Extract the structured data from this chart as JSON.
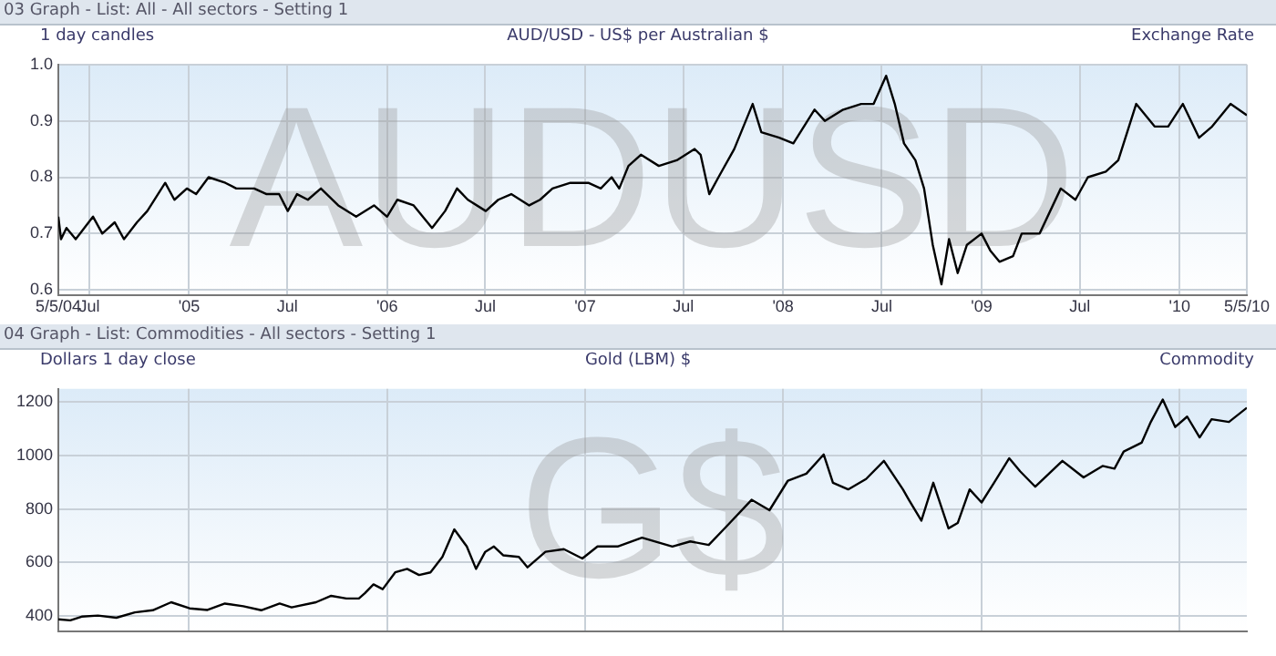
{
  "chart_data": [
    {
      "type": "line",
      "title": "AUD/USD - US$ per Australian $",
      "subtitle": "1 day candles",
      "annotations": [
        "03 Graph - List: All - All sectors - Setting 1",
        "Exchange Rate",
        "AUDUSD"
      ],
      "series": [
        {
          "color": "#000000",
          "x": [
            "2004-05-05",
            "2004-05-10",
            "2004-05-20",
            "2004-06-06",
            "2004-07-08",
            "2004-07-25",
            "2004-08-17",
            "2004-09-03",
            "2004-09-27",
            "2004-10-16",
            "2004-11-18",
            "2004-12-05",
            "2004-12-28",
            "2005-01-14",
            "2005-02-06",
            "2005-03-09",
            "2005-03-29",
            "2005-05-01",
            "2005-05-24",
            "2005-06-16",
            "2005-07-02",
            "2005-07-19",
            "2005-08-08",
            "2005-09-01",
            "2005-10-03",
            "2005-11-05",
            "2005-12-08",
            "2006-01-01",
            "2006-01-20",
            "2006-02-19",
            "2006-03-25",
            "2006-04-18",
            "2006-05-10",
            "2006-05-30",
            "2006-07-02",
            "2006-07-25",
            "2006-08-18",
            "2006-09-20",
            "2006-10-10",
            "2006-11-02",
            "2006-12-05",
            "2007-01-07",
            "2007-01-30",
            "2007-02-19",
            "2007-03-05",
            "2007-03-22",
            "2007-04-14",
            "2007-05-17",
            "2007-06-19",
            "2007-07-22",
            "2007-08-02",
            "2007-08-18",
            "2007-09-04",
            "2007-10-03",
            "2007-11-06",
            "2007-11-22",
            "2007-12-25",
            "2008-01-20",
            "2008-02-28",
            "2008-03-18",
            "2008-04-21",
            "2008-05-24",
            "2008-06-16",
            "2008-07-09",
            "2008-07-25",
            "2008-08-11",
            "2008-09-01",
            "2008-09-17",
            "2008-10-03",
            "2008-10-19",
            "2008-11-02",
            "2008-11-18",
            "2008-12-05",
            "2009-01-01",
            "2009-01-17",
            "2009-02-03",
            "2009-02-28",
            "2009-03-16",
            "2009-04-18",
            "2009-05-27",
            "2009-06-23",
            "2009-07-16",
            "2009-08-18",
            "2009-09-10",
            "2009-10-13",
            "2009-11-16",
            "2009-12-11",
            "2010-01-07",
            "2010-02-06",
            "2010-03-02",
            "2010-04-05",
            "2010-05-05"
          ],
          "values": [
            0.73,
            0.69,
            0.71,
            0.69,
            0.73,
            0.7,
            0.72,
            0.69,
            0.72,
            0.74,
            0.79,
            0.76,
            0.78,
            0.77,
            0.8,
            0.79,
            0.78,
            0.78,
            0.77,
            0.77,
            0.74,
            0.77,
            0.76,
            0.78,
            0.75,
            0.73,
            0.75,
            0.73,
            0.76,
            0.75,
            0.71,
            0.74,
            0.78,
            0.76,
            0.74,
            0.76,
            0.77,
            0.75,
            0.76,
            0.78,
            0.79,
            0.79,
            0.78,
            0.8,
            0.78,
            0.82,
            0.84,
            0.82,
            0.83,
            0.85,
            0.84,
            0.77,
            0.8,
            0.85,
            0.93,
            0.88,
            0.87,
            0.86,
            0.92,
            0.9,
            0.92,
            0.93,
            0.93,
            0.98,
            0.93,
            0.86,
            0.83,
            0.78,
            0.68,
            0.61,
            0.69,
            0.63,
            0.68,
            0.7,
            0.67,
            0.65,
            0.66,
            0.7,
            0.7,
            0.78,
            0.76,
            0.8,
            0.81,
            0.83,
            0.93,
            0.89,
            0.89,
            0.93,
            0.87,
            0.89,
            0.93,
            0.91
          ]
        }
      ],
      "xlim": [
        "2004-05-05",
        "2010-05-05"
      ],
      "xticks": [
        {
          "value": "2004-05-05",
          "label": "5/5/04"
        },
        {
          "value": "2004-07-01",
          "label": "Jul"
        },
        {
          "value": "2005-01-01",
          "label": "'05"
        },
        {
          "value": "2005-07-01",
          "label": "Jul"
        },
        {
          "value": "2006-01-01",
          "label": "'06"
        },
        {
          "value": "2006-07-01",
          "label": "Jul"
        },
        {
          "value": "2007-01-01",
          "label": "'07"
        },
        {
          "value": "2007-07-01",
          "label": "Jul"
        },
        {
          "value": "2008-01-01",
          "label": "'08"
        },
        {
          "value": "2008-07-01",
          "label": "Jul"
        },
        {
          "value": "2009-01-01",
          "label": "'09"
        },
        {
          "value": "2009-07-01",
          "label": "Jul"
        },
        {
          "value": "2010-01-01",
          "label": "'10"
        },
        {
          "value": "2010-05-05",
          "label": "5/5/10"
        }
      ],
      "ylim": [
        0.59,
        1.0
      ],
      "yticks": [
        0.6,
        0.7,
        0.8,
        0.9,
        {
          "value": 1.0,
          "label": "1.0"
        }
      ],
      "grid": true,
      "legend": false
    },
    {
      "type": "line",
      "title": "Gold (LBM) $",
      "subtitle": "Dollars 1 day close",
      "annotations": [
        "04 Graph - List: Commodities - All sectors - Setting 1",
        "Commodity",
        "G$"
      ],
      "series": [
        {
          "color": "#000000",
          "x": [
            "2004-05-05",
            "2004-05-27",
            "2004-06-17",
            "2004-07-17",
            "2004-08-20",
            "2004-09-23",
            "2004-10-26",
            "2004-11-29",
            "2005-01-02",
            "2005-02-04",
            "2005-03-08",
            "2005-04-11",
            "2005-05-14",
            "2005-06-17",
            "2005-07-09",
            "2005-08-23",
            "2005-09-20",
            "2005-10-18",
            "2005-11-10",
            "2005-11-21",
            "2005-12-07",
            "2005-12-24",
            "2006-01-16",
            "2006-02-07",
            "2006-03-01",
            "2006-03-22",
            "2006-04-13",
            "2006-05-05",
            "2006-05-28",
            "2006-06-14",
            "2006-07-01",
            "2006-07-17",
            "2006-08-03",
            "2006-09-01",
            "2006-09-17",
            "2006-10-20",
            "2006-11-23",
            "2006-12-27",
            "2007-01-24",
            "2007-03-02",
            "2007-04-16",
            "2007-06-11",
            "2007-07-14",
            "2007-08-17",
            "2007-09-20",
            "2007-11-04",
            "2007-12-07",
            "2008-01-10",
            "2008-02-13",
            "2008-03-16",
            "2008-04-02",
            "2008-04-30",
            "2008-06-02",
            "2008-07-05",
            "2008-08-09",
            "2008-08-20",
            "2008-09-12",
            "2008-10-04",
            "2008-11-01",
            "2008-11-18",
            "2008-12-10",
            "2009-01-01",
            "2009-01-24",
            "2009-02-21",
            "2009-03-13",
            "2009-04-10",
            "2009-05-30",
            "2009-07-08",
            "2009-08-12",
            "2009-09-03",
            "2009-09-20",
            "2009-10-23",
            "2009-11-09",
            "2009-12-01",
            "2009-12-24",
            "2010-01-15",
            "2010-02-07",
            "2010-03-01",
            "2010-04-02",
            "2010-05-05"
          ],
          "values": [
            386,
            382,
            396,
            400,
            392,
            412,
            420,
            450,
            427,
            421,
            445,
            435,
            420,
            445,
            431,
            450,
            474,
            464,
            464,
            484,
            517,
            499,
            562,
            575,
            552,
            562,
            620,
            723,
            659,
            575,
            639,
            659,
            626,
            620,
            581,
            639,
            649,
            614,
            659,
            659,
            692,
            659,
            678,
            665,
            737,
            834,
            795,
            906,
            932,
            1004,
            898,
            873,
            912,
            980,
            873,
            834,
            756,
            898,
            727,
            747,
            873,
            824,
            898,
            990,
            941,
            883,
            980,
            918,
            961,
            951,
            1015,
            1048,
            1126,
            1210,
            1107,
            1146,
            1068,
            1136,
            1126,
            1179
          ]
        }
      ],
      "xlim": [
        "2004-05-05",
        "2010-05-05"
      ],
      "xticks": [
        {
          "value": "2005-01-01",
          "label": null
        },
        {
          "value": "2006-01-01",
          "label": null
        },
        {
          "value": "2007-01-01",
          "label": null
        },
        {
          "value": "2008-01-01",
          "label": null
        },
        {
          "value": "2009-01-01",
          "label": null
        },
        {
          "value": "2010-01-01",
          "label": null
        }
      ],
      "ylim": [
        340,
        1250
      ],
      "yticks": [
        400,
        600,
        800,
        1000,
        1200
      ],
      "grid": true,
      "legend": false,
      "tick_labels": "y"
    }
  ]
}
